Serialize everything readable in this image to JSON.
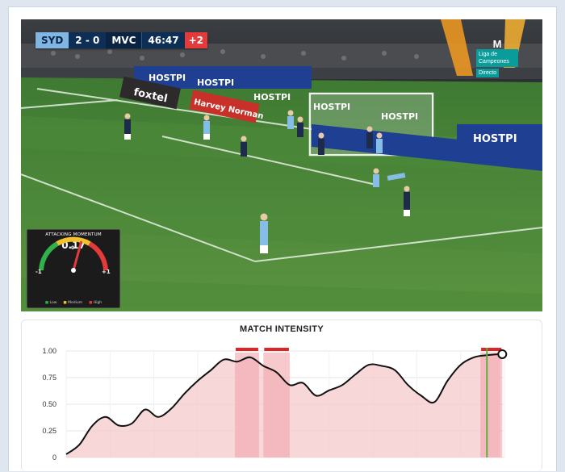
{
  "scorebug": {
    "home_team": "SYD",
    "score": "2 - 0",
    "away_team": "MVC",
    "clock": "46:47",
    "added_time": "+2"
  },
  "broadcaster": {
    "brand": "M",
    "competition": "Liga de Campeones",
    "live": "Directo"
  },
  "ad_boards": [
    "HOSTPI",
    "HOSTPI",
    "HOSTPI",
    "foxtel",
    "Harvey Norman",
    "HOSTPI",
    "HOSTPI",
    "HOSTPI"
  ],
  "momentum": {
    "title": "ATTACKING MOMENTUM",
    "value": "0.17",
    "fraction": 0.17,
    "min_label": "-1",
    "max_label": "+1",
    "zero_label": "0",
    "legend": [
      "Low",
      "Medium",
      "High"
    ],
    "colors": {
      "low": "#2fb24a",
      "medium": "#f2c12e",
      "high": "#e53a3a"
    }
  },
  "chart_data": {
    "type": "area",
    "title": "MATCH INTENSITY",
    "xlabel": "",
    "ylabel": "",
    "ylim": [
      0,
      1
    ],
    "yticks": [
      "0",
      "0.25",
      "0.50",
      "0.75",
      "1.00"
    ],
    "xlim": [
      0,
      100
    ],
    "x": [
      0,
      3,
      6,
      9,
      12,
      15,
      18,
      21,
      24,
      27,
      30,
      33,
      36,
      39,
      42,
      45,
      48,
      51,
      54,
      57,
      60,
      63,
      66,
      69,
      72,
      75,
      78,
      81,
      84,
      87,
      90,
      93,
      96,
      99
    ],
    "y": [
      0.03,
      0.12,
      0.3,
      0.38,
      0.3,
      0.32,
      0.45,
      0.38,
      0.46,
      0.6,
      0.72,
      0.82,
      0.92,
      0.9,
      0.94,
      0.86,
      0.8,
      0.68,
      0.7,
      0.58,
      0.63,
      0.68,
      0.78,
      0.87,
      0.86,
      0.82,
      0.68,
      0.58,
      0.52,
      0.72,
      0.87,
      0.94,
      0.96,
      0.97
    ],
    "highlight_ranges": [
      [
        38.5,
        44
      ],
      [
        45,
        51
      ],
      [
        94.5,
        99.5
      ]
    ],
    "current_x": 96,
    "end_marker": {
      "x": 99.5,
      "y": 0.97
    },
    "colors": {
      "line": "#111111",
      "fill": "#f6c9cc",
      "highlight": "#f2a5ab",
      "marker_bar": "#e02424",
      "current_line": "#5cae3c"
    }
  }
}
